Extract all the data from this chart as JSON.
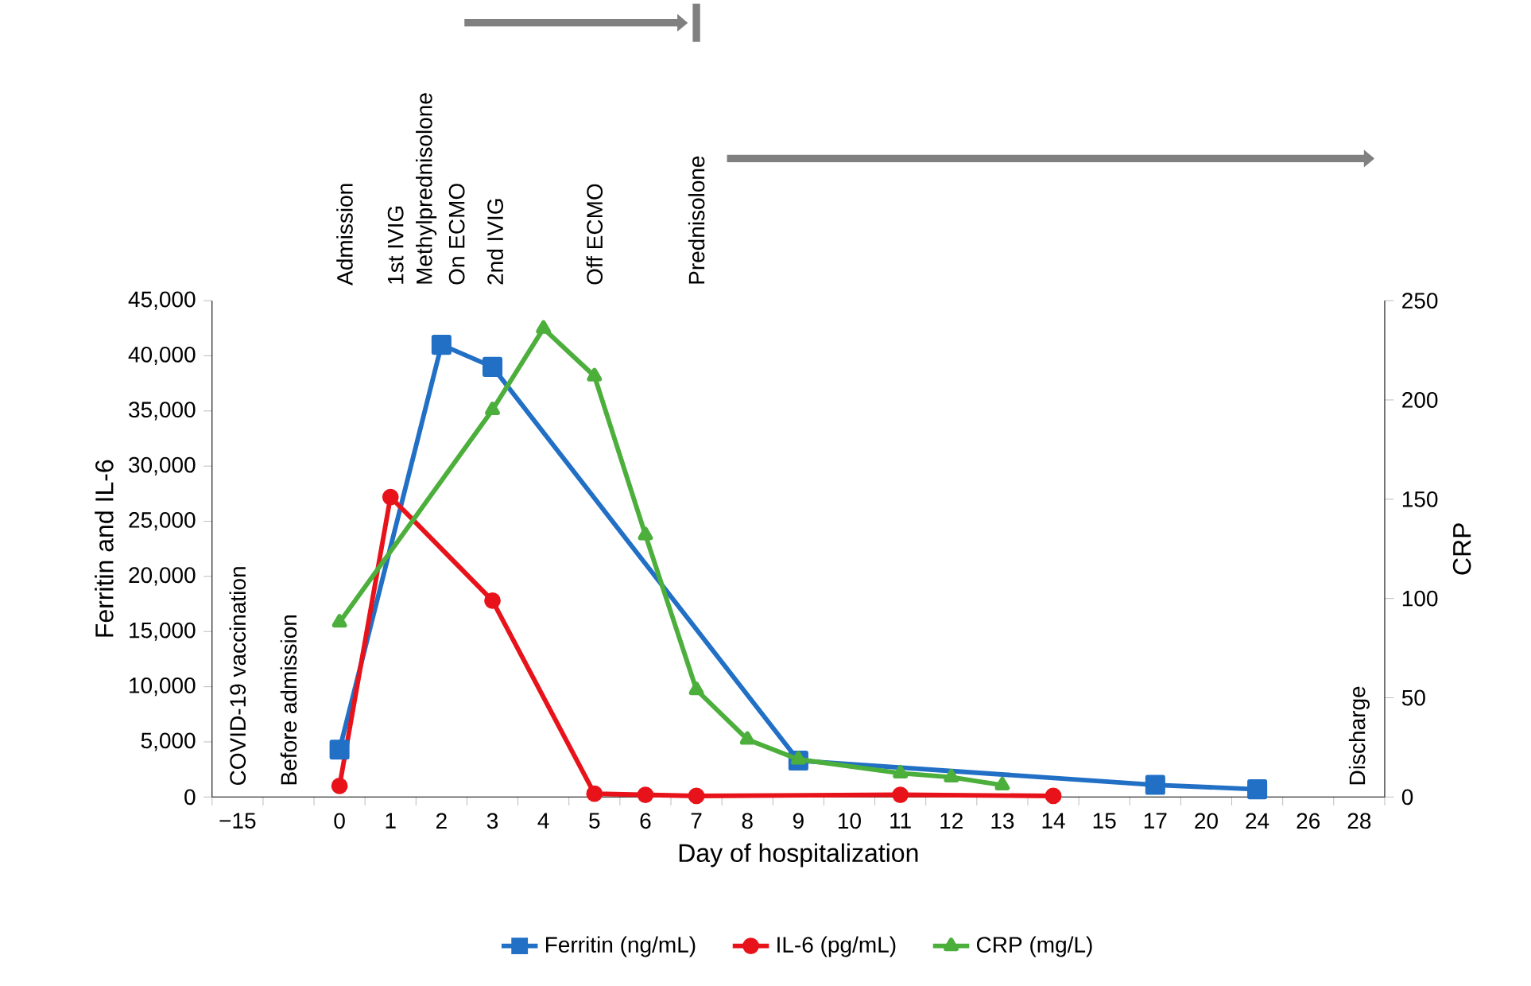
{
  "chart_data": {
    "type": "line",
    "xlabel": "Day of hospitalization",
    "ylabel": "Ferritin and IL-6",
    "y2label": "CRP",
    "categories": [
      "−15",
      null,
      "0",
      "1",
      "2",
      "3",
      "4",
      "5",
      "6",
      "7",
      "8",
      "9",
      "10",
      "11",
      "12",
      "13",
      "14",
      "15",
      "17",
      "20",
      "24",
      "26",
      "28"
    ],
    "series": [
      {
        "name": "Ferritin (ng/mL)",
        "color": "#2170c5",
        "marker": "square",
        "values": [
          null,
          null,
          4300,
          null,
          41000,
          39000,
          null,
          null,
          null,
          null,
          null,
          3300,
          null,
          null,
          null,
          null,
          null,
          null,
          1100,
          null,
          700,
          null,
          null
        ]
      },
      {
        "name": "IL-6 (pg/mL)",
        "color": "#e8131a",
        "marker": "circle",
        "values": [
          null,
          null,
          1000,
          27200,
          null,
          17800,
          null,
          300,
          200,
          100,
          null,
          null,
          null,
          200,
          null,
          null,
          100,
          null,
          null,
          null,
          null,
          null,
          null
        ]
      },
      {
        "name": "CRP (mg/L)",
        "color": "#4caf3c",
        "marker": "triangle",
        "axis": "y2",
        "values": [
          null,
          null,
          88,
          null,
          null,
          195,
          236,
          212,
          132,
          54,
          29,
          19,
          null,
          12,
          10,
          6,
          null,
          null,
          null,
          null,
          null,
          null,
          null
        ]
      }
    ],
    "ylim": [
      0,
      45000
    ],
    "yticks": [
      {
        "value": 0,
        "label": "0"
      },
      {
        "value": 5000,
        "label": "5,000"
      },
      {
        "value": 10000,
        "label": "10,000"
      },
      {
        "value": 15000,
        "label": "15,000"
      },
      {
        "value": 20000,
        "label": "20,000"
      },
      {
        "value": 25000,
        "label": "25,000"
      },
      {
        "value": 30000,
        "label": "30,000"
      },
      {
        "value": 35000,
        "label": "35,000"
      },
      {
        "value": 40000,
        "label": "40,000"
      },
      {
        "value": 45000,
        "label": "45,000"
      }
    ],
    "y2lim": [
      0,
      250
    ],
    "y2ticks": [
      0,
      50,
      100,
      150,
      200,
      250
    ],
    "legend": "bottom",
    "grid": false,
    "annotations": [
      "COVID-19 vaccination",
      "Before admission",
      "Admission",
      "1st IVIG",
      "Methylprednisolone",
      "On ECMO",
      "2nd IVIG",
      "Off ECMO",
      "Prednisolone",
      "Discharge"
    ]
  }
}
